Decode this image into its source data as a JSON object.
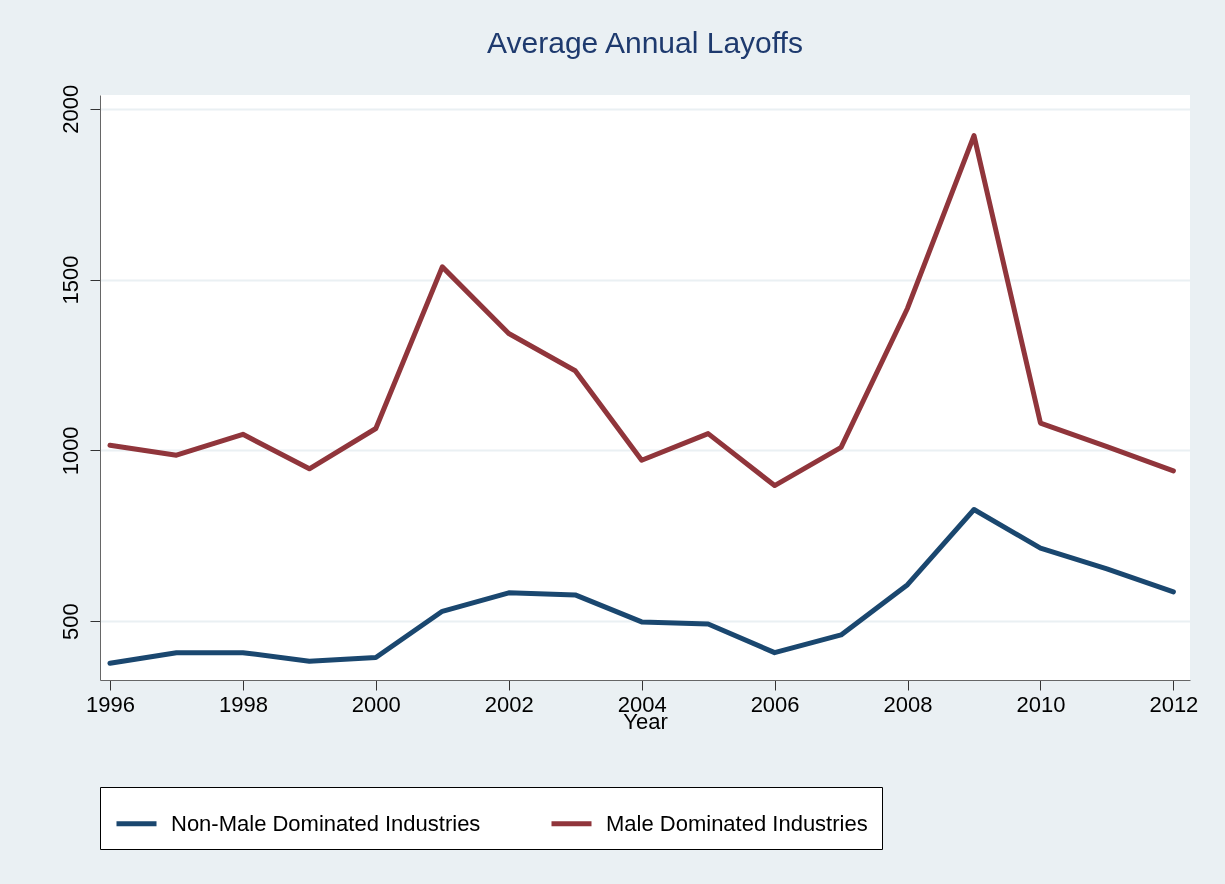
{
  "chart_data": {
    "type": "line",
    "title": "Average Annual Layoffs",
    "xlabel": "Year",
    "x": [
      1996,
      1997,
      1998,
      1999,
      2000,
      2001,
      2002,
      2003,
      2004,
      2005,
      2006,
      2007,
      2008,
      2009,
      2010,
      2011,
      2012
    ],
    "series": [
      {
        "name": "Non-Male Dominated Industries",
        "color": "#1a476f",
        "values": [
          377,
          408,
          408,
          383,
          394,
          529,
          583,
          577,
          498,
          492,
          408,
          460,
          607,
          827,
          714,
          653,
          586
        ]
      },
      {
        "name": "Male Dominated Industries",
        "color": "#90353b",
        "values": [
          1015,
          986,
          1047,
          946,
          1064,
          1537,
          1342,
          1233,
          971,
          1049,
          897,
          1009,
          1416,
          1921,
          1080,
          1011,
          940
        ]
      }
    ],
    "xlim": [
      1995.85,
      2012.25
    ],
    "xticks": [
      1996,
      1998,
      2000,
      2002,
      2004,
      2006,
      2008,
      2010,
      2012
    ],
    "ylim": [
      328,
      2040
    ],
    "yticks": [
      500,
      1000,
      1500,
      2000
    ],
    "grid": "y",
    "legend": "bottom"
  }
}
